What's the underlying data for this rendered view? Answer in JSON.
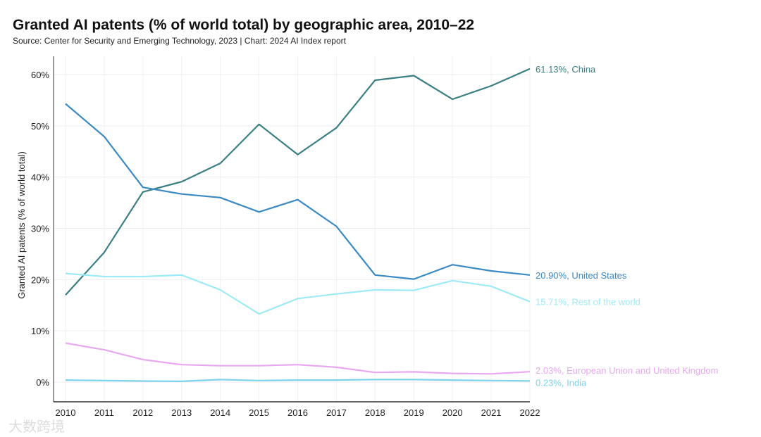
{
  "chart_data": {
    "type": "line",
    "title": "Granted AI patents (% of world total) by geographic area, 2010–22",
    "subtitle": "Source: Center for Security and Emerging Technology, 2023 | Chart: 2024 AI Index report",
    "xlabel": "",
    "ylabel": "Granted AI patents (% of world total)",
    "ylim": [
      0,
      60
    ],
    "yticks": [
      "0%",
      "10%",
      "20%",
      "30%",
      "40%",
      "50%",
      "60%"
    ],
    "x": [
      "2010",
      "2011",
      "2012",
      "2013",
      "2014",
      "2015",
      "2016",
      "2017",
      "2018",
      "2019",
      "2020",
      "2021",
      "2022"
    ],
    "grid": true,
    "series": [
      {
        "name": "China",
        "color": "#3a7f82",
        "label": "61.13%, China",
        "values": [
          17.0,
          25.3,
          37.1,
          39.1,
          42.7,
          50.3,
          44.4,
          49.6,
          58.9,
          59.8,
          55.2,
          57.8,
          61.13
        ]
      },
      {
        "name": "United States",
        "color": "#3b8ac4",
        "label": "20.90%, United States",
        "values": [
          54.3,
          47.9,
          38.0,
          36.7,
          36.0,
          33.2,
          35.6,
          30.4,
          20.9,
          20.1,
          22.9,
          21.7,
          20.9
        ]
      },
      {
        "name": "Rest of the world",
        "color": "#9eeaf5",
        "label": "15.71%, Rest of the world",
        "values": [
          21.2,
          20.6,
          20.6,
          20.9,
          18.0,
          13.3,
          16.3,
          17.2,
          18.0,
          17.9,
          19.8,
          18.7,
          15.71
        ]
      },
      {
        "name": "European Union and United Kingdom",
        "color": "#e8a8f0",
        "label": "2.03%, European Union and United Kingdom",
        "values": [
          7.6,
          6.3,
          4.4,
          3.4,
          3.2,
          3.2,
          3.4,
          2.9,
          1.9,
          2.0,
          1.7,
          1.6,
          2.03
        ]
      },
      {
        "name": "India",
        "color": "#7dd3ec",
        "label": "0.23%, India",
        "values": [
          0.4,
          0.3,
          0.2,
          0.15,
          0.5,
          0.3,
          0.4,
          0.4,
          0.5,
          0.5,
          0.4,
          0.3,
          0.23
        ]
      }
    ]
  },
  "watermark": "大数跨境"
}
